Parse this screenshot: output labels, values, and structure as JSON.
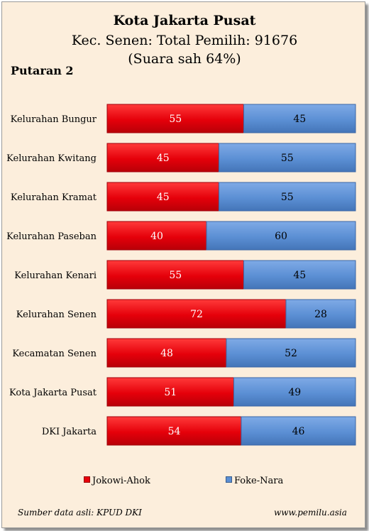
{
  "header": {
    "title": "Kota Jakarta Pusat",
    "subtitle": "Kec. Senen: Total Pemilih: 91676",
    "subtitle2": "(Suara sah 64%)",
    "round": "Putaran 2"
  },
  "chart_data": {
    "type": "bar",
    "orientation": "horizontal",
    "stacked": "percent",
    "categories": [
      "Kelurahan Bungur",
      "Kelurahan Kwitang",
      "Kelurahan Kramat",
      "Kelurahan Paseban",
      "Kelurahan Kenari",
      "Kelurahan Senen",
      "Kecamatan Senen",
      "Kota Jakarta Pusat",
      "DKI Jakarta"
    ],
    "series": [
      {
        "name": "Jokowi-Ahok",
        "color": "#E8000B",
        "values": [
          55,
          45,
          45,
          40,
          55,
          72,
          48,
          51,
          54
        ]
      },
      {
        "name": "Foke-Nara",
        "color": "#5B8FD4",
        "values": [
          45,
          55,
          55,
          60,
          45,
          28,
          52,
          49,
          46
        ]
      }
    ],
    "xlim": [
      0,
      100
    ],
    "legend_position": "bottom",
    "grid": false
  },
  "footer": {
    "source": "Sumber data asli: KPUD DKI",
    "website": "www.pemilu.asia"
  }
}
